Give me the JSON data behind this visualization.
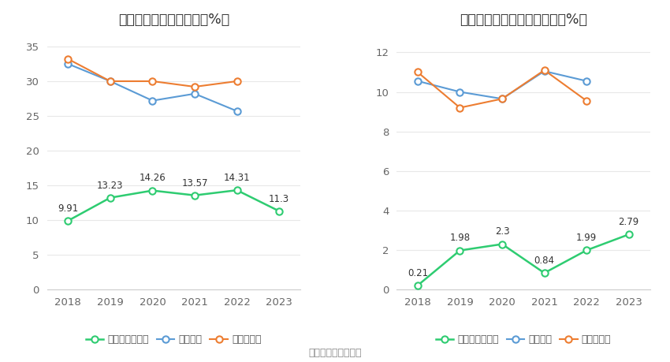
{
  "years": [
    2018,
    2019,
    2020,
    2021,
    2022,
    2023
  ],
  "chart1": {
    "title": "近年来资产负债率情况（%）",
    "company": [
      9.91,
      13.23,
      14.26,
      13.57,
      14.31,
      11.3
    ],
    "industry_mean": [
      32.5,
      30.0,
      27.2,
      28.2,
      25.7,
      null
    ],
    "industry_median": [
      33.2,
      30.0,
      30.0,
      29.2,
      30.0,
      null
    ],
    "ylim": [
      0,
      37
    ],
    "yticks": [
      0,
      5,
      10,
      15,
      20,
      25,
      30,
      35
    ],
    "legend_labels": [
      "公司资产负债率",
      "行业均值",
      "行业中位数"
    ]
  },
  "chart2": {
    "title": "近年来有息资产负债率情况（%）",
    "company": [
      0.21,
      1.98,
      2.3,
      0.84,
      1.99,
      2.79
    ],
    "industry_mean": [
      10.55,
      10.0,
      9.65,
      11.05,
      10.55,
      null
    ],
    "industry_median": [
      11.0,
      9.2,
      9.65,
      11.1,
      9.55,
      null
    ],
    "ylim": [
      0,
      13
    ],
    "yticks": [
      0,
      2,
      4,
      6,
      8,
      10,
      12
    ],
    "legend_labels": [
      "有息资产负债率",
      "行业均值",
      "行业中位数"
    ]
  },
  "colors": {
    "company": "#2ecc71",
    "industry_mean": "#5b9bd5",
    "industry_median": "#ed7d31"
  },
  "source_text": "数据来源：恒生聚源",
  "bg_color": "#ffffff",
  "grid_color": "#e8e8e8",
  "annotation_fontsize": 8.5,
  "tick_fontsize": 9.5,
  "title_fontsize": 12.5,
  "legend_fontsize": 9
}
